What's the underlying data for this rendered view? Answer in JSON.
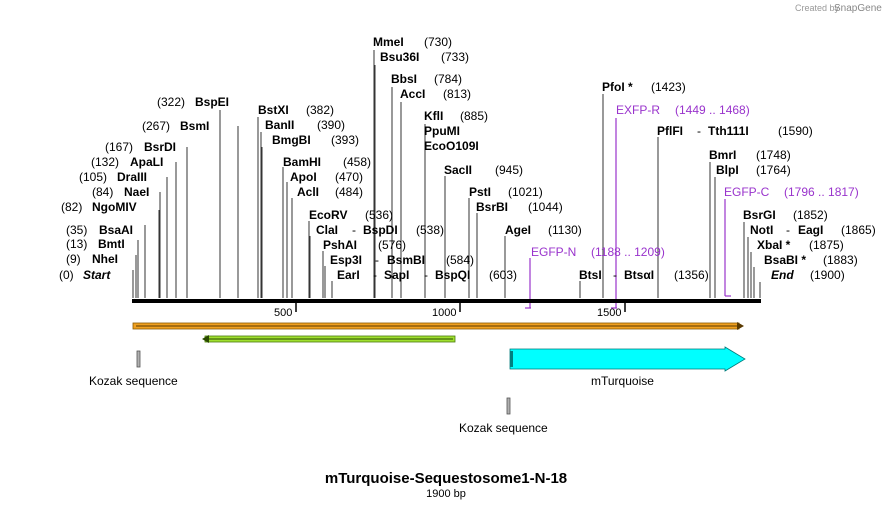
{
  "credit": {
    "prefix": "Created by",
    "brand": "SnapGene"
  },
  "title": "mTurquoise-Sequestosome1-N-18",
  "length_label": "1900 bp",
  "sequence_length": 1900,
  "ticks": [
    "500",
    "1000",
    "1500"
  ],
  "ends": [
    {
      "name": "Start",
      "pos": "(0)"
    },
    {
      "name": "End",
      "pos": "(1900)"
    }
  ],
  "left_sites": [
    {
      "name": "BspEI",
      "pos": "(322)"
    },
    {
      "name": "BsmI",
      "pos": "(267)"
    },
    {
      "name": "BsrDI",
      "pos": "(167)"
    },
    {
      "name": "ApaLI",
      "pos": "(132)"
    },
    {
      "name": "DraIII",
      "pos": "(105)"
    },
    {
      "name": "NaeI",
      "pos": "(84)"
    },
    {
      "name": "NgoMIV",
      "pos": "(82)"
    },
    {
      "name": "BsaAI",
      "pos": "(35)"
    },
    {
      "name": "BmtI",
      "pos": "(13)"
    },
    {
      "name": "NheI",
      "pos": "(9)"
    }
  ],
  "right_sites": [
    {
      "name": "MmeI",
      "pos": "(730)"
    },
    {
      "name": "Bsu36I",
      "pos": "(733)"
    },
    {
      "name": "BbsI",
      "pos": "(784)"
    },
    {
      "name": "AccI",
      "pos": "(813)"
    },
    {
      "name": "KflI",
      "pos": "(885)"
    },
    {
      "name": "PpuMI",
      "pos": ""
    },
    {
      "name": "EcoO109I",
      "pos": ""
    },
    {
      "name": "SacII",
      "pos": "(945)"
    },
    {
      "name": "PstI",
      "pos": "(1021)"
    },
    {
      "name": "BsrBI",
      "pos": "(1044)"
    },
    {
      "name": "AgeI",
      "pos": "(1130)"
    },
    {
      "name": "BstXI",
      "pos": "(382)"
    },
    {
      "name": "BanII",
      "pos": "(390)"
    },
    {
      "name": "BmgBI",
      "pos": "(393)"
    },
    {
      "name": "BamHI",
      "pos": "(458)"
    },
    {
      "name": "ApoI",
      "pos": "(470)"
    },
    {
      "name": "AclI",
      "pos": "(484)"
    },
    {
      "name": "EcoRV",
      "pos": "(536)"
    },
    {
      "name": "PshAI",
      "pos": "(576)"
    },
    {
      "name": "PfoI *",
      "pos": "(1423)"
    },
    {
      "name": "Tth111I",
      "pos": "(1590)"
    },
    {
      "name": "BmrI",
      "pos": "(1748)"
    },
    {
      "name": "BlpI",
      "pos": "(1764)"
    },
    {
      "name": "BsrGI",
      "pos": "(1852)"
    },
    {
      "name": "XbaI *",
      "pos": "(1875)"
    },
    {
      "name": "BsaBI *",
      "pos": "(1883)"
    },
    {
      "name": "EagI",
      "pos": "(1865)"
    },
    {
      "name": "BtsαI",
      "pos": "(1356)"
    },
    {
      "name": "BspQI",
      "pos": "(603)"
    }
  ],
  "paired_sites": [
    {
      "a": "ClaI",
      "b": "BspDI",
      "pos": "(538)"
    },
    {
      "a": "Esp3I",
      "b": "BsmBI",
      "pos": "(584)"
    },
    {
      "a": "EarI",
      "b": "SapI",
      "pos": ""
    },
    {
      "a": "PflFI",
      "b": "",
      "pos": ""
    },
    {
      "a": "NotI",
      "b": "",
      "pos": ""
    },
    {
      "a": "BtsI",
      "b": "",
      "pos": ""
    }
  ],
  "primers": [
    {
      "name": "EXFP-R",
      "pos": "(1449 .. 1468)"
    },
    {
      "name": "EGFP-N",
      "pos": "(1188 .. 1209)"
    },
    {
      "name": "EGFP-C",
      "pos": "(1796 .. 1817)"
    }
  ],
  "features": [
    {
      "name": "Kozak sequence"
    },
    {
      "name": "mTurquoise"
    },
    {
      "name": "Kozak sequence"
    }
  ],
  "colors": {
    "primer": "#9933cc",
    "orf_orange": "#f0a020",
    "orf_green": "#90e020",
    "feature_cyan": "#00ffff",
    "kozak_gray": "#b0b0b0"
  }
}
